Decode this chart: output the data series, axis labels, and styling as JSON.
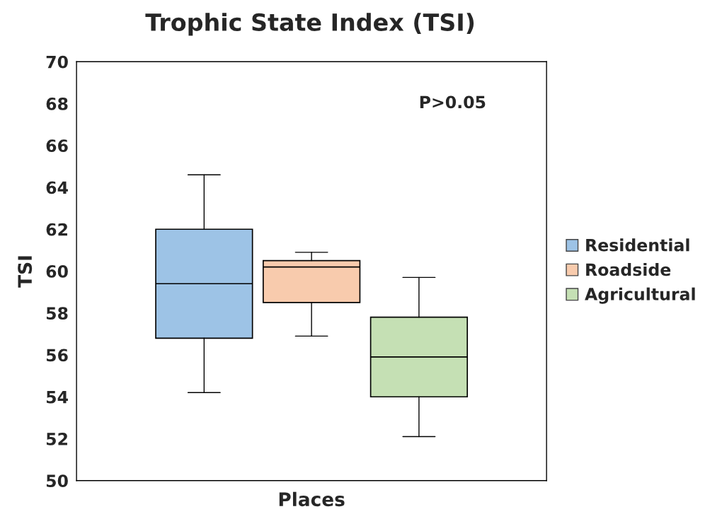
{
  "chart_data": {
    "type": "box",
    "title": "Trophic State Index (TSI)",
    "xlabel": "Places",
    "ylabel": "TSI",
    "categories": [
      null
    ],
    "series": [
      {
        "name": "Residential",
        "color": "#9dc3e6",
        "boxes": [
          {
            "low": 54.2,
            "q1": 56.8,
            "median": 59.4,
            "q3": 62.0,
            "high": 64.6
          }
        ]
      },
      {
        "name": "Roadside",
        "color": "#f8cbad",
        "boxes": [
          {
            "low": 56.9,
            "q1": 58.5,
            "median": 60.2,
            "q3": 60.5,
            "high": 60.9
          }
        ]
      },
      {
        "name": "Agricultural",
        "color": "#c5e0b4",
        "boxes": [
          {
            "low": 52.1,
            "q1": 54.0,
            "median": 55.9,
            "q3": 57.8,
            "high": 59.7
          }
        ]
      }
    ],
    "ylim": [
      50,
      70
    ],
    "yticks": [
      50,
      52,
      54,
      56,
      58,
      60,
      62,
      64,
      66,
      68,
      70
    ],
    "annotations": [
      "P>0.05"
    ],
    "legend": "right",
    "grid": false
  }
}
